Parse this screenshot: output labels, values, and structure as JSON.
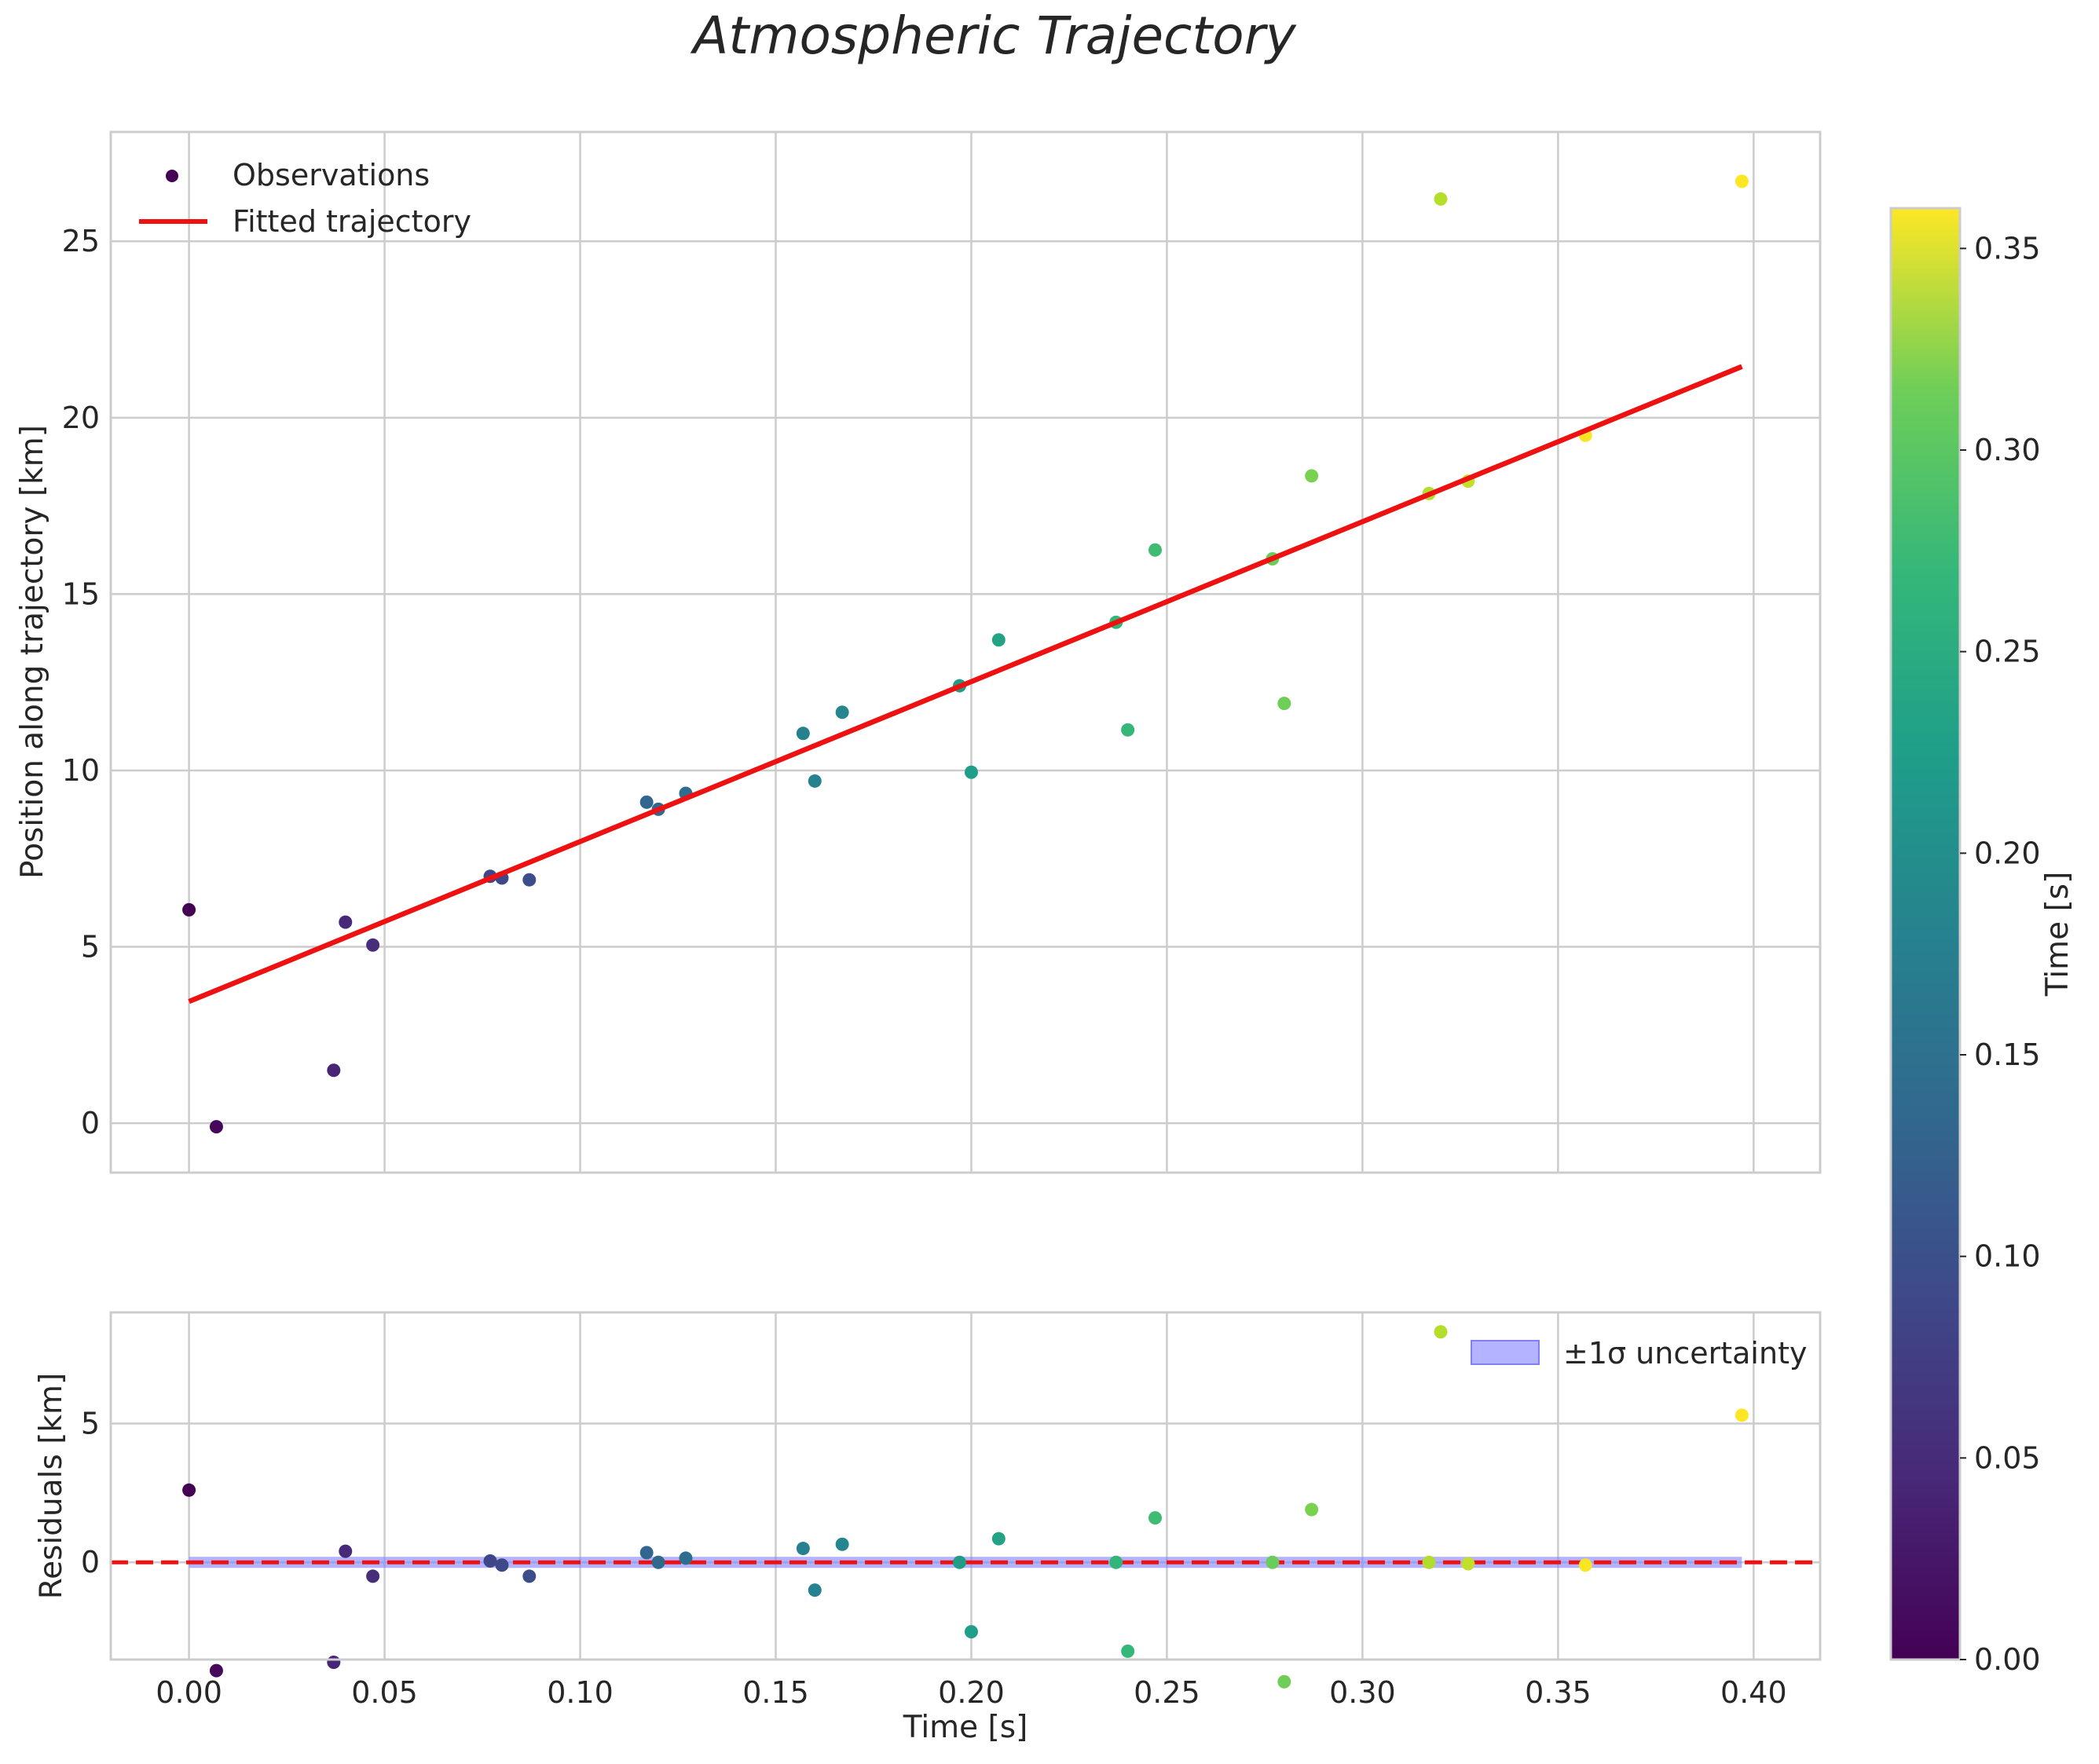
{
  "chart_data": {
    "type": "scatter",
    "title": "Atmospheric Trajectory",
    "x": [
      0.0,
      0.007,
      0.037,
      0.04,
      0.047,
      0.077,
      0.08,
      0.087,
      0.117,
      0.12,
      0.127,
      0.157,
      0.16,
      0.167,
      0.197,
      0.2,
      0.207,
      0.237,
      0.24,
      0.247,
      0.277,
      0.28,
      0.287,
      0.317,
      0.32,
      0.327,
      0.357,
      0.397
    ],
    "top": {
      "ylabel": "Position along trajectory [km]",
      "xlim": [
        -0.02,
        0.417
      ],
      "ylim": [
        -1.4,
        28.1
      ],
      "xticks": [
        "0.00",
        "0.05",
        "0.10",
        "0.15",
        "0.20",
        "0.25",
        "0.30",
        "0.35",
        "0.40"
      ],
      "xtick_values": [
        0,
        0.05,
        0.1,
        0.15,
        0.2,
        0.25,
        0.3,
        0.35,
        0.4
      ],
      "yticks": [
        "0",
        "5",
        "10",
        "15",
        "20",
        "25"
      ],
      "ytick_values": [
        0,
        5,
        10,
        15,
        20,
        25
      ],
      "series": [
        {
          "name": "Observations",
          "type": "scatter",
          "colormap": "viridis",
          "y": [
            6.05,
            -0.1,
            1.5,
            5.7,
            5.05,
            7.0,
            6.95,
            6.9,
            9.1,
            8.9,
            9.35,
            11.05,
            9.7,
            11.65,
            12.4,
            9.95,
            13.7,
            14.2,
            11.15,
            16.25,
            16.0,
            11.9,
            18.35,
            17.85,
            26.2,
            18.2,
            19.5,
            26.7
          ]
        },
        {
          "name": "Fitted trajectory",
          "type": "line",
          "color": "#ee1111",
          "x": [
            0.0,
            0.397
          ],
          "y": [
            3.45,
            21.45
          ]
        }
      ],
      "legend_position": "upper-left"
    },
    "bottom": {
      "ylabel": "Residuals [km]",
      "xlabel": "Time [s]",
      "ylim": [
        -3.5,
        9.0
      ],
      "yticks": [
        "0",
        "5"
      ],
      "ytick_values": [
        0,
        5
      ],
      "residuals": [
        2.6,
        -3.9,
        -3.6,
        0.4,
        -0.5,
        0.05,
        -0.1,
        -0.5,
        0.35,
        0.0,
        0.15,
        0.5,
        -1.0,
        0.65,
        0.0,
        -2.5,
        0.85,
        0.0,
        -3.2,
        1.6,
        0.0,
        -4.3,
        1.9,
        0.0,
        8.3,
        -0.05,
        -0.1,
        5.3
      ],
      "zero_line_color": "#ee1111",
      "band": {
        "label": "±1σ uncertainty",
        "lower": -0.2,
        "upper": 0.2,
        "color": "#8080ff"
      },
      "legend_position": "upper-right"
    },
    "colorbar": {
      "label": "Time [s]",
      "range": [
        0.0,
        0.36
      ],
      "ticks": [
        "0.00",
        "0.05",
        "0.10",
        "0.15",
        "0.20",
        "0.25",
        "0.30",
        "0.35"
      ],
      "tick_values": [
        0,
        0.05,
        0.1,
        0.15,
        0.2,
        0.25,
        0.3,
        0.35
      ]
    },
    "grid": true
  }
}
